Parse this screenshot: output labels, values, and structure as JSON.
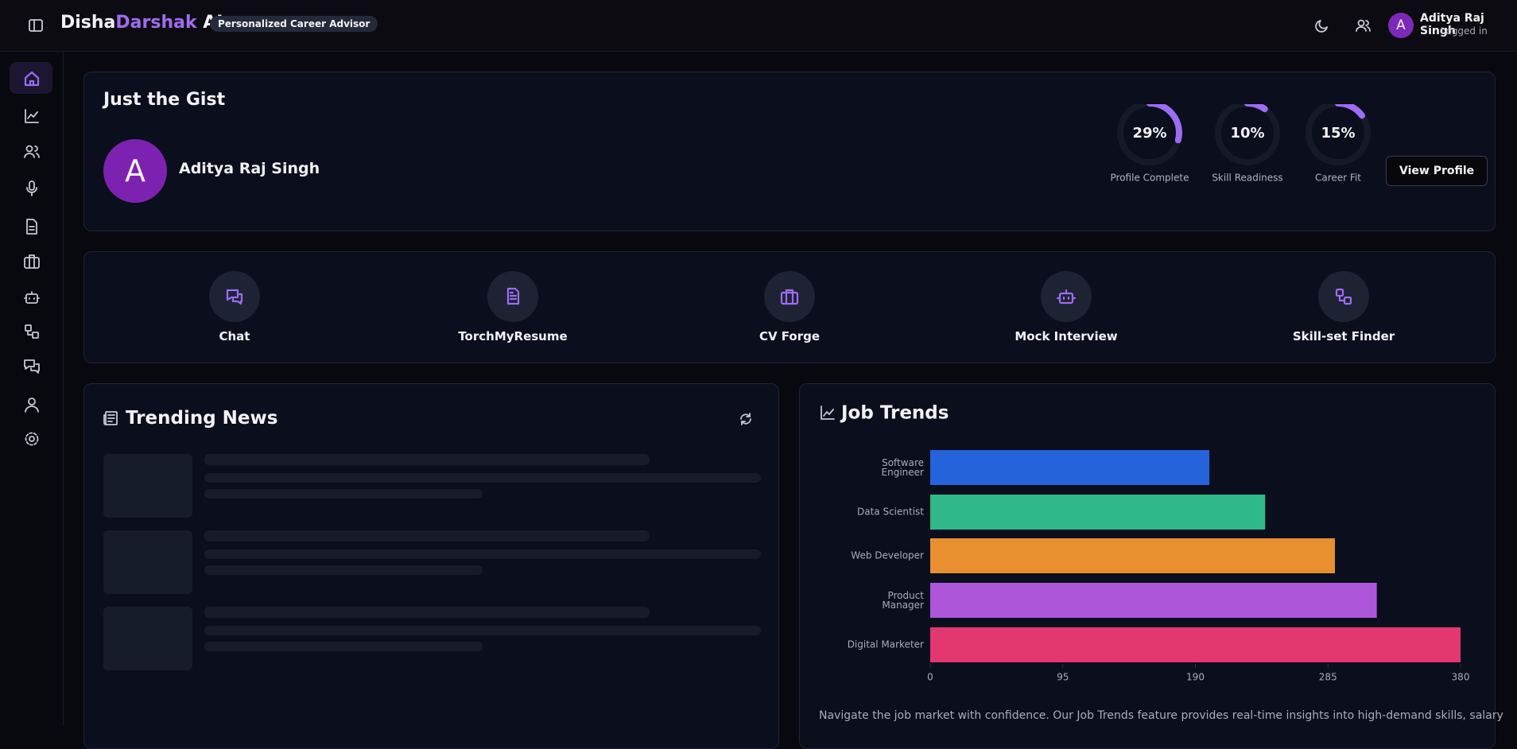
{
  "header": {
    "brand": [
      "Disha",
      "Darshak",
      "AI"
    ],
    "badge": "Personalized Career Advisor",
    "user": {
      "avatar": "A",
      "name": "Aditya Raj Singh",
      "status": "Logged in"
    }
  },
  "gist": {
    "title": "Just the Gist",
    "avatar": "A",
    "name": "Aditya Raj Singh",
    "stats": [
      {
        "value": 29,
        "label": "29%",
        "name": "Profile Complete"
      },
      {
        "value": 10,
        "label": "10%",
        "name": "Skill Readiness"
      },
      {
        "value": 15,
        "label": "15%",
        "name": "Career Fit"
      }
    ],
    "button": "View Profile"
  },
  "actions": [
    "Chat",
    "TorchMyResume",
    "CV Forge",
    "Mock Interview",
    "Skill-set Finder"
  ],
  "news": {
    "title": "Trending News"
  },
  "chart_data": {
    "type": "hbar",
    "title": "Job Trends",
    "categories": [
      "Software Engineer",
      "Data Scientist",
      "Web Developer",
      "Product Manager",
      "Digital Marketer"
    ],
    "values": [
      200,
      240,
      290,
      320,
      380
    ],
    "colors": [
      "#2563db",
      "#2fb98a",
      "#e8902f",
      "#ae56d9",
      "#e2386f"
    ],
    "xlim": [
      0,
      380
    ],
    "xticks": [
      0,
      95,
      190,
      285,
      380
    ],
    "description": "Navigate the job market with confidence. Our Job Trends feature provides real-time insights into high-demand skills, salary"
  }
}
